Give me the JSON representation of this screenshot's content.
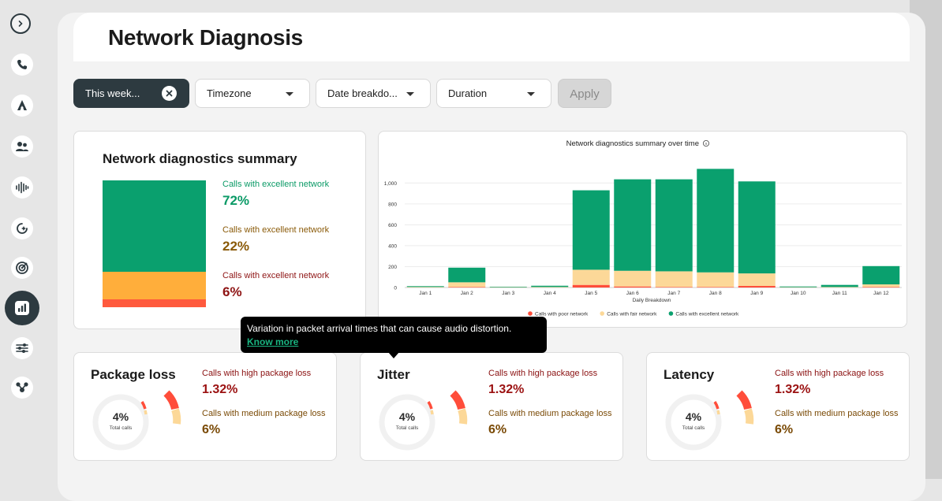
{
  "header": {
    "title": "Network Diagnosis"
  },
  "sidebar": {
    "items": [
      {
        "icon": "phone-icon"
      },
      {
        "icon": "agent-icon"
      },
      {
        "icon": "users-icon"
      },
      {
        "icon": "audio-wave-icon"
      },
      {
        "icon": "sparkle-refresh-icon"
      },
      {
        "icon": "target-icon"
      },
      {
        "icon": "analytics-icon",
        "active": true
      },
      {
        "icon": "sliders-icon"
      },
      {
        "icon": "integrations-icon"
      }
    ]
  },
  "filters": {
    "active_chip": "This week...",
    "timezone": "Timezone",
    "date_breakdown": "Date breakdo...",
    "duration": "Duration",
    "apply": "Apply"
  },
  "summary": {
    "title": "Network diagnostics summary",
    "segments": [
      {
        "label": "Calls with excellent network",
        "value": "72%",
        "share": 0.72,
        "color": "#0aa06e",
        "text_color": "#0a9a66"
      },
      {
        "label": "Calls with excellent network",
        "value": "22%",
        "share": 0.22,
        "color": "#ffae3b",
        "text_color": "#8a5a08"
      },
      {
        "label": "Calls with excellent network",
        "value": "6%",
        "share": 0.06,
        "color": "#ff5a3d",
        "text_color": "#8e1414"
      }
    ]
  },
  "chart_data": {
    "type": "bar",
    "stacked": true,
    "title": "Network diagnostics summary over time",
    "xlabel": "Daily Breakdown",
    "ylabel": "",
    "ylim": [
      0,
      1100
    ],
    "yticks": [
      0,
      200,
      400,
      600,
      800,
      "1,000"
    ],
    "categories": [
      "Jan 1",
      "Jan 2",
      "Jan 3",
      "Jan 4",
      "Jan 5",
      "Jan 6",
      "Jan 7",
      "Jan 8",
      "Jan 9",
      "Jan 10",
      "Jan 11",
      "Jan 12"
    ],
    "series": [
      {
        "name": "Calls with poor network",
        "color": "#ff4d3a",
        "values": [
          0,
          5,
          0,
          0,
          25,
          10,
          5,
          5,
          15,
          0,
          0,
          5
        ]
      },
      {
        "name": "Calls with fair network",
        "color": "#fcd898",
        "values": [
          5,
          45,
          3,
          5,
          145,
          150,
          150,
          140,
          120,
          3,
          5,
          25
        ]
      },
      {
        "name": "Calls with excellent network",
        "color": "#0aa06e",
        "values": [
          8,
          140,
          5,
          12,
          760,
          875,
          880,
          990,
          880,
          7,
          20,
          175
        ]
      }
    ],
    "legend": "bottom",
    "grid": true
  },
  "metrics": [
    {
      "title": "Package loss",
      "center_value": "4%",
      "center_label": "Total calls",
      "l1": "Calls with high package loss",
      "v1": "1.32%",
      "l2": "Calls with medium package loss",
      "v2": "6%"
    },
    {
      "title": "Jitter",
      "center_value": "4%",
      "center_label": "Total calls",
      "l1": "Calls with high package loss",
      "v1": "1.32%",
      "l2": "Calls with medium package loss",
      "v2": "6%"
    },
    {
      "title": "Latency",
      "center_value": "4%",
      "center_label": "Total calls",
      "l1": "Calls with high package loss",
      "v1": "1.32%",
      "l2": "Calls with medium package loss",
      "v2": "6%"
    }
  ],
  "tooltip": {
    "text": "Variation in packet arrival times that can cause audio distortion.",
    "link": "Know more"
  }
}
